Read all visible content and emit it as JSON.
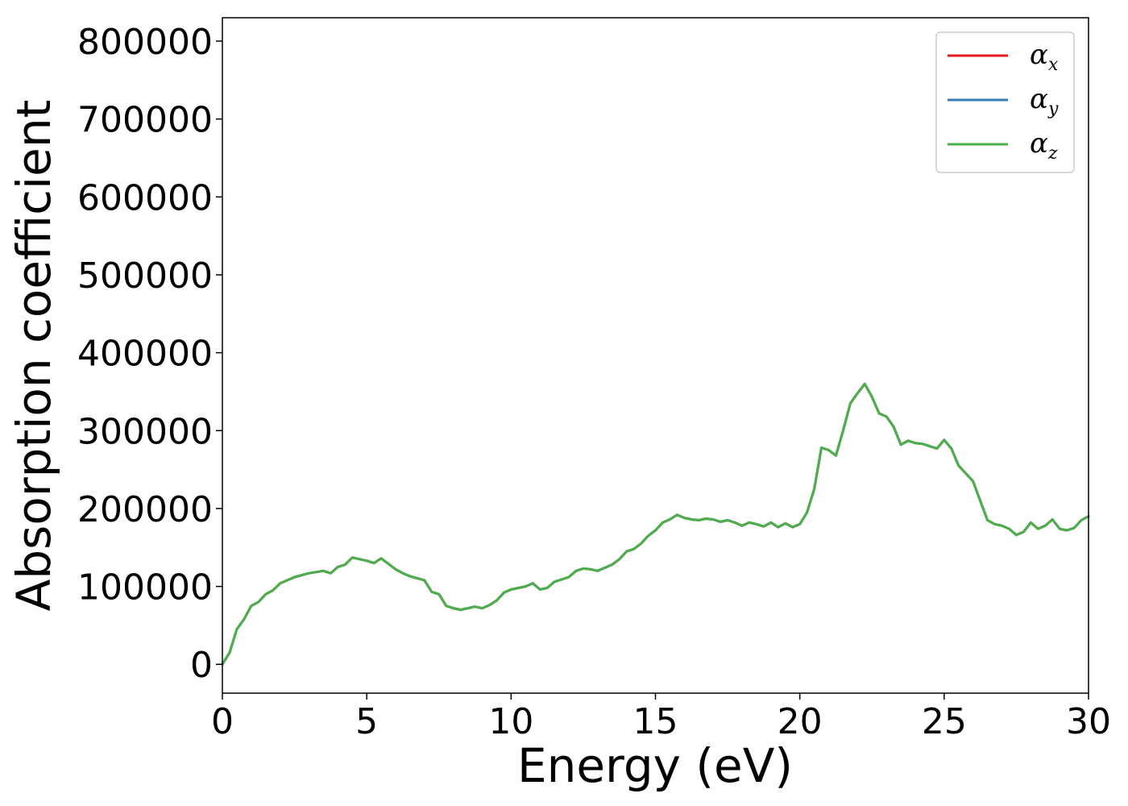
{
  "chart_data": {
    "type": "line",
    "xlabel": "Energy (eV)",
    "ylabel": "Absorption coefficient",
    "xlim": [
      0,
      30
    ],
    "ylim": [
      -37000,
      830000
    ],
    "xticks": [
      0,
      5,
      10,
      15,
      20,
      25,
      30
    ],
    "yticks": [
      0,
      100000,
      200000,
      300000,
      400000,
      500000,
      600000,
      700000,
      800000
    ],
    "grid": false,
    "legend_position": "top-right",
    "legend": [
      {
        "symbol": "α",
        "sub": "x",
        "color": "#e41a1c"
      },
      {
        "symbol": "α",
        "sub": "y",
        "color": "#377eb8"
      },
      {
        "symbol": "α",
        "sub": "z",
        "color": "#4daf4a"
      }
    ],
    "x": [
      0,
      0.25,
      0.5,
      0.75,
      1.0,
      1.25,
      1.5,
      1.75,
      2.0,
      2.25,
      2.5,
      3.0,
      3.5,
      3.75,
      4.0,
      4.25,
      4.5,
      5.0,
      5.25,
      5.5,
      6.0,
      6.25,
      6.5,
      7.0,
      7.25,
      7.5,
      7.75,
      8.0,
      8.25,
      8.5,
      8.75,
      9.0,
      9.25,
      9.5,
      9.75,
      10.0,
      10.25,
      10.5,
      10.75,
      11.0,
      11.25,
      11.5,
      12.0,
      12.25,
      12.5,
      12.75,
      13.0,
      13.25,
      13.5,
      13.75,
      14.0,
      14.25,
      14.5,
      14.75,
      15.0,
      15.25,
      15.5,
      15.75,
      16.0,
      16.25,
      16.5,
      16.75,
      17.0,
      17.25,
      17.5,
      17.75,
      18.0,
      18.25,
      18.5,
      18.75,
      19.0,
      19.25,
      19.5,
      19.75,
      20.0,
      20.25,
      20.5,
      20.75,
      21.0,
      21.25,
      21.5,
      21.75,
      22.0,
      22.25,
      22.5,
      22.75,
      23.0,
      23.25,
      23.5,
      23.75,
      24.0,
      24.25,
      24.5,
      24.75,
      25.0,
      25.25,
      25.5,
      25.75,
      26.0,
      26.25,
      26.5,
      26.75,
      27.0,
      27.25,
      27.5,
      27.75,
      28.0,
      28.25,
      28.5,
      28.75,
      29.0,
      29.25,
      29.5,
      29.75,
      30.0
    ],
    "series": [
      {
        "name": "α_x",
        "color": "#e41a1c",
        "values": [
          0,
          15000,
          45000,
          58000,
          75000,
          80000,
          90000,
          95000,
          104000,
          108000,
          112000,
          117000,
          120000,
          117000,
          125000,
          128000,
          137000,
          133000,
          130000,
          136000,
          122000,
          117000,
          113000,
          108000,
          93000,
          90000,
          75000,
          72000,
          70000,
          72000,
          74000,
          72000,
          76000,
          82000,
          92000,
          96000,
          98000,
          100000,
          104000,
          96000,
          98000,
          106000,
          112000,
          120000,
          123000,
          122000,
          120000,
          124000,
          128000,
          135000,
          145000,
          148000,
          155000,
          165000,
          172000,
          182000,
          186000,
          192000,
          188000,
          186000,
          185000,
          187000,
          186000,
          183000,
          185000,
          182000,
          178000,
          182000,
          180000,
          177000,
          182000,
          176000,
          181000,
          176000,
          180000,
          195000,
          225000,
          278000,
          275000,
          268000,
          300000,
          335000,
          348000,
          360000,
          343000,
          322000,
          318000,
          305000,
          282000,
          287000,
          284000,
          283000,
          280000,
          277000,
          288000,
          277000,
          255000,
          245000,
          235000,
          210000,
          185000,
          180000,
          178000,
          174000,
          166000,
          170000,
          182000,
          174000,
          178000,
          186000,
          174000,
          172000,
          175000,
          185000,
          190000
        ]
      },
      {
        "name": "α_y",
        "color": "#377eb8",
        "values": [
          0,
          15000,
          45000,
          58000,
          75000,
          80000,
          90000,
          95000,
          104000,
          108000,
          112000,
          117000,
          120000,
          117000,
          125000,
          128000,
          137000,
          133000,
          130000,
          136000,
          122000,
          117000,
          113000,
          108000,
          93000,
          90000,
          75000,
          72000,
          70000,
          72000,
          74000,
          72000,
          76000,
          82000,
          92000,
          96000,
          98000,
          100000,
          104000,
          96000,
          98000,
          106000,
          112000,
          120000,
          123000,
          122000,
          120000,
          124000,
          128000,
          135000,
          145000,
          148000,
          155000,
          165000,
          172000,
          182000,
          186000,
          192000,
          188000,
          186000,
          185000,
          187000,
          186000,
          183000,
          185000,
          182000,
          178000,
          182000,
          180000,
          177000,
          182000,
          176000,
          181000,
          176000,
          180000,
          195000,
          225000,
          278000,
          275000,
          268000,
          300000,
          335000,
          348000,
          360000,
          343000,
          322000,
          318000,
          305000,
          282000,
          287000,
          284000,
          283000,
          280000,
          277000,
          288000,
          277000,
          255000,
          245000,
          235000,
          210000,
          185000,
          180000,
          178000,
          174000,
          166000,
          170000,
          182000,
          174000,
          178000,
          186000,
          174000,
          172000,
          175000,
          185000,
          190000
        ]
      },
      {
        "name": "α_z",
        "color": "#4daf4a",
        "values": [
          0,
          15000,
          45000,
          58000,
          75000,
          80000,
          90000,
          95000,
          104000,
          108000,
          112000,
          117000,
          120000,
          117000,
          125000,
          128000,
          137000,
          133000,
          130000,
          136000,
          122000,
          117000,
          113000,
          108000,
          93000,
          90000,
          75000,
          72000,
          70000,
          72000,
          74000,
          72000,
          76000,
          82000,
          92000,
          96000,
          98000,
          100000,
          104000,
          96000,
          98000,
          106000,
          112000,
          120000,
          123000,
          122000,
          120000,
          124000,
          128000,
          135000,
          145000,
          148000,
          155000,
          165000,
          172000,
          182000,
          186000,
          192000,
          188000,
          186000,
          185000,
          187000,
          186000,
          183000,
          185000,
          182000,
          178000,
          182000,
          180000,
          177000,
          182000,
          176000,
          181000,
          176000,
          180000,
          195000,
          225000,
          278000,
          275000,
          268000,
          300000,
          335000,
          348000,
          360000,
          343000,
          322000,
          318000,
          305000,
          282000,
          287000,
          284000,
          283000,
          280000,
          277000,
          288000,
          277000,
          255000,
          245000,
          235000,
          210000,
          185000,
          180000,
          178000,
          174000,
          166000,
          170000,
          182000,
          174000,
          178000,
          186000,
          174000,
          172000,
          175000,
          185000,
          190000
        ]
      }
    ]
  }
}
